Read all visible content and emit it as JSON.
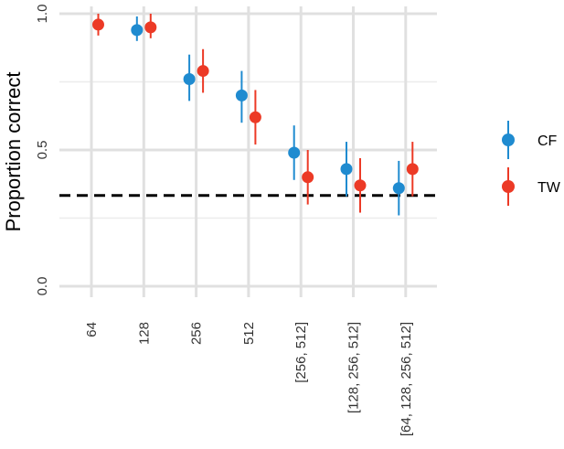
{
  "chart_data": {
    "type": "scatter",
    "subtype": "point-range",
    "ylabel": "Proportion correct",
    "xlabel": "",
    "ylim": [
      0,
      1
    ],
    "yticks": [
      0.0,
      0.5,
      1.0
    ],
    "ytick_labels": [
      "0.0",
      "0.5",
      "1.0"
    ],
    "grid": true,
    "legend_position": "right",
    "categories": [
      "64",
      "128",
      "256",
      "512",
      "[256, 512]",
      "[128, 256, 512]",
      "[64, 128, 256, 512]"
    ],
    "reference_line": {
      "y": 0.333,
      "style": "dashed",
      "color": "#000000"
    },
    "series": [
      {
        "name": "CF",
        "color": "#1f8bd0",
        "values": [
          null,
          0.94,
          0.76,
          0.7,
          0.49,
          0.43,
          0.36
        ],
        "lower": [
          null,
          0.9,
          0.68,
          0.6,
          0.39,
          0.33,
          0.26
        ],
        "upper": [
          null,
          0.99,
          0.85,
          0.79,
          0.59,
          0.53,
          0.46
        ]
      },
      {
        "name": "TW",
        "color": "#ec3a26",
        "values": [
          0.96,
          0.95,
          0.79,
          0.62,
          0.4,
          0.37,
          0.43
        ],
        "lower": [
          0.92,
          0.91,
          0.71,
          0.52,
          0.3,
          0.27,
          0.33
        ],
        "upper": [
          1.0,
          1.0,
          0.87,
          0.72,
          0.5,
          0.47,
          0.53
        ]
      }
    ]
  }
}
